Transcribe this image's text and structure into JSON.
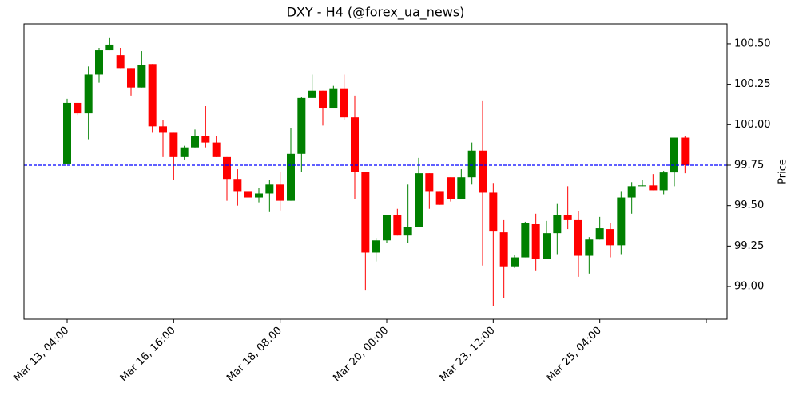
{
  "chart_data": {
    "type": "candlestick",
    "title": "DXY - H4 (@forex_ua_news)",
    "y_label": "Price",
    "up_color": "#008000",
    "down_color": "#ff0000",
    "hline": {
      "value": 99.75,
      "color": "#0000ff"
    },
    "xlim": [
      -4.05,
      61.95
    ],
    "ylim": [
      98.798,
      100.623
    ],
    "xticks": [
      {
        "value": 0,
        "label": "Mar 13, 04:00"
      },
      {
        "value": 10,
        "label": "Mar 16, 16:00"
      },
      {
        "value": 20,
        "label": "Mar 18, 08:00"
      },
      {
        "value": 30,
        "label": "Mar 20, 00:00"
      },
      {
        "value": 40,
        "label": "Mar 23, 12:00"
      },
      {
        "value": 50,
        "label": "Mar 25, 04:00"
      },
      {
        "value": 60,
        "label": null
      }
    ],
    "yticks": [
      {
        "value": 99.0,
        "label": "99.00"
      },
      {
        "value": 99.25,
        "label": "99.25"
      },
      {
        "value": 99.5,
        "label": "99.50"
      },
      {
        "value": 99.75,
        "label": "99.75"
      },
      {
        "value": 100.0,
        "label": "100.00"
      },
      {
        "value": 100.25,
        "label": "100.25"
      },
      {
        "value": 100.5,
        "label": "100.50"
      }
    ],
    "open": [
      99.76,
      100.135,
      100.07,
      100.31,
      100.46,
      100.43,
      100.35,
      100.23,
      100.375,
      99.99,
      99.95,
      99.8,
      99.86,
      99.93,
      99.89,
      99.8,
      99.665,
      99.59,
      99.55,
      99.575,
      99.63,
      99.53,
      99.82,
      100.165,
      100.21,
      100.105,
      100.225,
      100.045,
      99.71,
      99.21,
      99.285,
      99.44,
      99.315,
      99.37,
      99.7,
      99.59,
      99.675,
      99.54,
      99.675,
      99.84,
      99.58,
      99.335,
      99.125,
      99.18,
      99.385,
      99.17,
      99.33,
      99.44,
      99.41,
      99.19,
      99.29,
      99.355,
      99.255,
      99.55,
      99.62,
      99.625,
      99.595,
      99.705,
      99.92
    ],
    "high": [
      100.16,
      100.135,
      100.36,
      100.475,
      100.54,
      100.475,
      100.35,
      100.455,
      100.375,
      100.03,
      99.95,
      99.87,
      99.97,
      100.115,
      99.93,
      99.8,
      99.725,
      99.59,
      99.61,
      99.66,
      99.71,
      99.98,
      100.17,
      100.31,
      100.21,
      100.24,
      100.31,
      100.18,
      99.71,
      99.3,
      99.44,
      99.48,
      99.63,
      99.795,
      99.7,
      99.59,
      99.675,
      99.725,
      99.89,
      100.15,
      99.64,
      99.41,
      99.195,
      99.4,
      99.45,
      99.405,
      99.51,
      99.62,
      99.465,
      99.305,
      99.43,
      99.395,
      99.59,
      99.645,
      99.66,
      99.695,
      99.715,
      99.92,
      99.93
    ],
    "low": [
      99.76,
      100.06,
      99.91,
      100.26,
      100.46,
      100.35,
      100.18,
      100.23,
      99.95,
      99.8,
      99.66,
      99.785,
      99.86,
      99.86,
      99.8,
      99.53,
      99.5,
      99.55,
      99.52,
      99.46,
      99.47,
      99.53,
      99.71,
      100.165,
      99.995,
      100.105,
      100.03,
      99.54,
      98.975,
      99.155,
      99.27,
      99.315,
      99.27,
      99.37,
      99.48,
      99.505,
      99.525,
      99.54,
      99.63,
      99.13,
      98.88,
      98.93,
      99.115,
      99.18,
      99.1,
      99.17,
      99.2,
      99.355,
      99.06,
      99.08,
      99.29,
      99.18,
      99.2,
      99.45,
      99.62,
      99.595,
      99.57,
      99.62,
      99.7
    ],
    "close": [
      100.135,
      100.07,
      100.31,
      100.46,
      100.495,
      100.35,
      100.23,
      100.37,
      99.99,
      99.95,
      99.8,
      99.86,
      99.93,
      99.89,
      99.8,
      99.665,
      99.59,
      99.55,
      99.575,
      99.63,
      99.53,
      99.82,
      100.165,
      100.21,
      100.105,
      100.225,
      100.045,
      99.71,
      99.21,
      99.285,
      99.44,
      99.315,
      99.37,
      99.7,
      99.59,
      99.505,
      99.54,
      99.675,
      99.84,
      99.58,
      99.34,
      99.125,
      99.18,
      99.39,
      99.17,
      99.33,
      99.44,
      99.41,
      99.19,
      99.29,
      99.36,
      99.255,
      99.55,
      99.62,
      99.625,
      99.595,
      99.705,
      99.92,
      99.75
    ]
  }
}
